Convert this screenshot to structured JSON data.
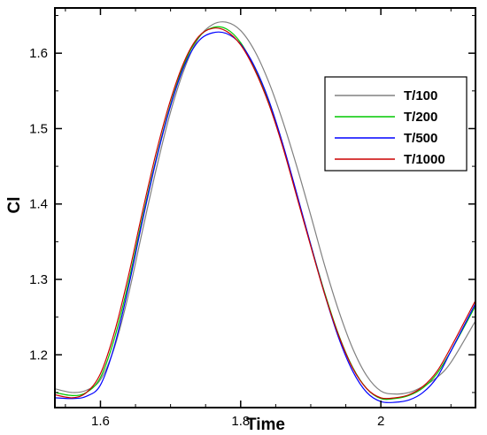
{
  "chart_data": {
    "type": "line",
    "xlabel": "Time",
    "ylabel": "Cl",
    "xlim": [
      1.535,
      2.135
    ],
    "ylim": [
      1.13,
      1.66
    ],
    "xticks": [
      1.6,
      1.8,
      2.0
    ],
    "xtick_labels": [
      "1.6",
      "1.8",
      "2"
    ],
    "yticks": [
      1.2,
      1.3,
      1.4,
      1.5,
      1.6
    ],
    "ytick_labels": [
      "1.2",
      "1.3",
      "1.4",
      "1.5",
      "1.6"
    ],
    "grid": false,
    "legend_position": "right",
    "series": [
      {
        "name": "T/100",
        "color": "#808080",
        "x": [
          1.535,
          1.56,
          1.58,
          1.6,
          1.62,
          1.64,
          1.66,
          1.68,
          1.7,
          1.72,
          1.74,
          1.76,
          1.78,
          1.8,
          1.82,
          1.84,
          1.86,
          1.88,
          1.9,
          1.92,
          1.94,
          1.96,
          1.98,
          2.0,
          2.02,
          2.04,
          2.06,
          2.08,
          2.1,
          2.135
        ],
        "y": [
          1.155,
          1.15,
          1.153,
          1.167,
          1.21,
          1.28,
          1.365,
          1.448,
          1.522,
          1.58,
          1.62,
          1.638,
          1.641,
          1.63,
          1.603,
          1.562,
          1.51,
          1.45,
          1.385,
          1.318,
          1.258,
          1.208,
          1.172,
          1.152,
          1.148,
          1.15,
          1.158,
          1.17,
          1.19,
          1.245
        ]
      },
      {
        "name": "T/200",
        "color": "#00c800",
        "x": [
          1.535,
          1.56,
          1.58,
          1.6,
          1.62,
          1.64,
          1.66,
          1.68,
          1.7,
          1.72,
          1.74,
          1.76,
          1.78,
          1.8,
          1.82,
          1.84,
          1.86,
          1.88,
          1.9,
          1.92,
          1.94,
          1.96,
          1.98,
          2.0,
          2.02,
          2.04,
          2.06,
          2.08,
          2.1,
          2.135
        ],
        "y": [
          1.15,
          1.146,
          1.15,
          1.17,
          1.222,
          1.296,
          1.382,
          1.462,
          1.532,
          1.587,
          1.621,
          1.634,
          1.632,
          1.614,
          1.58,
          1.535,
          1.478,
          1.412,
          1.346,
          1.282,
          1.226,
          1.183,
          1.155,
          1.142,
          1.142,
          1.146,
          1.156,
          1.175,
          1.205,
          1.265
        ]
      },
      {
        "name": "T/500",
        "color": "#0000ff",
        "x": [
          1.535,
          1.56,
          1.58,
          1.6,
          1.62,
          1.64,
          1.66,
          1.68,
          1.7,
          1.72,
          1.74,
          1.76,
          1.78,
          1.8,
          1.82,
          1.84,
          1.86,
          1.88,
          1.9,
          1.92,
          1.94,
          1.96,
          1.98,
          2.0,
          2.02,
          2.04,
          2.06,
          2.08,
          2.1,
          2.135
        ],
        "y": [
          1.143,
          1.142,
          1.145,
          1.16,
          1.212,
          1.29,
          1.378,
          1.46,
          1.53,
          1.584,
          1.616,
          1.627,
          1.626,
          1.612,
          1.582,
          1.538,
          1.48,
          1.414,
          1.346,
          1.28,
          1.222,
          1.178,
          1.15,
          1.138,
          1.137,
          1.14,
          1.15,
          1.17,
          1.205,
          1.268
        ]
      },
      {
        "name": "T/1000",
        "color": "#cc0000",
        "x": [
          1.535,
          1.56,
          1.58,
          1.6,
          1.62,
          1.64,
          1.66,
          1.68,
          1.7,
          1.72,
          1.74,
          1.76,
          1.78,
          1.8,
          1.82,
          1.84,
          1.86,
          1.88,
          1.9,
          1.92,
          1.94,
          1.96,
          1.98,
          2.0,
          2.02,
          2.04,
          2.06,
          2.08,
          2.1,
          2.135
        ],
        "y": [
          1.147,
          1.143,
          1.15,
          1.175,
          1.23,
          1.305,
          1.39,
          1.47,
          1.538,
          1.59,
          1.622,
          1.633,
          1.629,
          1.611,
          1.578,
          1.533,
          1.476,
          1.41,
          1.344,
          1.28,
          1.225,
          1.182,
          1.155,
          1.143,
          1.143,
          1.147,
          1.158,
          1.178,
          1.21,
          1.272
        ]
      }
    ]
  }
}
